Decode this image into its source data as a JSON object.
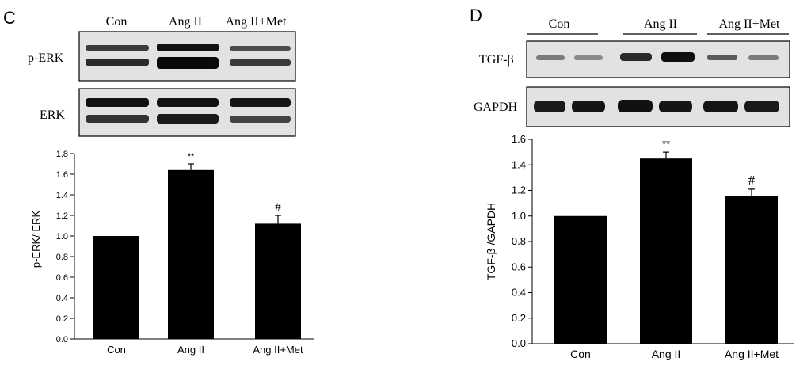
{
  "colors": {
    "bar": "#000000",
    "axis": "#000000",
    "blot_bg": "#e2e2e2",
    "band": "#1a1a1a"
  },
  "panels": [
    {
      "id": "C",
      "panel_label": "C",
      "blot_columns": [
        "Con",
        "Ang II",
        "Ang II+Met"
      ],
      "blot_rows": [
        "p-ERK",
        "ERK"
      ]
    },
    {
      "id": "D",
      "panel_label": "D",
      "blot_columns": [
        "Con",
        "Ang II",
        "Ang II+Met"
      ],
      "blot_rows": [
        "TGF-β",
        "GAPDH"
      ]
    }
  ],
  "chart_data": [
    {
      "type": "bar",
      "categories": [
        "Con",
        "Ang II",
        "Ang II+Met"
      ],
      "values": [
        1.0,
        1.64,
        1.12
      ],
      "errors": [
        0,
        0.06,
        0.08
      ],
      "annotations": [
        "",
        "**",
        "#"
      ],
      "ylabel": "p-ERK/ ERK",
      "ylim": [
        0,
        1.8
      ],
      "yticks": [
        "0.0",
        "0.2",
        "0.4",
        "0.6",
        "0.8",
        "1.0",
        "1.2",
        "1.4",
        "1.6",
        "1.8"
      ],
      "grid": false
    },
    {
      "type": "bar",
      "categories": [
        "Con",
        "Ang II",
        "Ang II+Met"
      ],
      "values": [
        1.0,
        1.45,
        1.155
      ],
      "errors": [
        0,
        0.05,
        0.055
      ],
      "annotations": [
        "",
        "**",
        "#"
      ],
      "ylabel": "TGF-β /GAPDH",
      "ylim": [
        0,
        1.6
      ],
      "yticks": [
        "0.0",
        "0.2",
        "0.4",
        "0.6",
        "0.8",
        "1.0",
        "1.2",
        "1.4",
        "1.6"
      ],
      "grid": false
    }
  ]
}
